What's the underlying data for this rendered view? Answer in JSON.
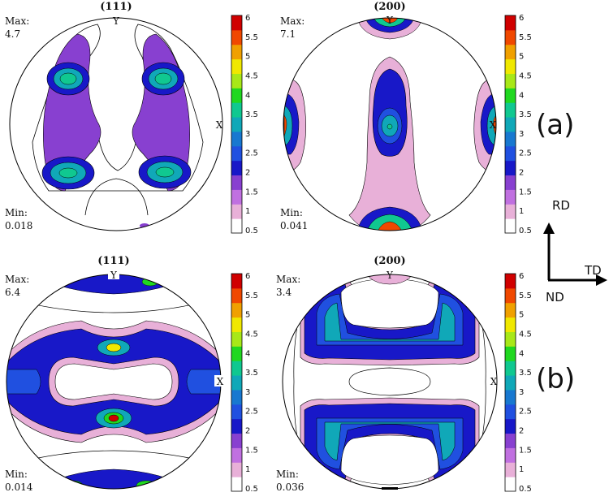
{
  "plots": [
    {
      "title": "(111)",
      "max_label": "Max:",
      "max_value": "4.7",
      "min_label": "Min:",
      "min_value": "0.018",
      "y_label": "Y",
      "x_label": "X"
    },
    {
      "title": "(200)",
      "max_label": "Max:",
      "max_value": "7.1",
      "min_label": "Min:",
      "min_value": "0.041",
      "y_label": "Y",
      "x_label": "X"
    },
    {
      "title": "(111)",
      "max_label": "Max:",
      "max_value": "6.4",
      "min_label": "Min:",
      "min_value": "0.014",
      "y_label": "Y",
      "x_label": "X"
    },
    {
      "title": "(200)",
      "max_label": "Max:",
      "max_value": "3.4",
      "min_label": "Min:",
      "min_value": "0.036",
      "y_label": "Y",
      "x_label": "X"
    }
  ],
  "colorbar": {
    "ticks": [
      "6",
      "5.5",
      "5",
      "4.5",
      "4",
      "3.5",
      "3",
      "2.5",
      "2",
      "1.5",
      "1",
      "0.5"
    ],
    "colors": [
      "#ffffff",
      "#e8b0d8",
      "#c070e0",
      "#8840d0",
      "#1818c8",
      "#2050e0",
      "#1878d0",
      "#10a8b8",
      "#10c890",
      "#20d820",
      "#a8e818",
      "#f0e800",
      "#f0a000",
      "#f04800",
      "#d00000"
    ]
  },
  "row_labels": {
    "a": "(a)",
    "b": "(b)"
  },
  "axes": {
    "rd": "RD",
    "td": "TD",
    "nd": "ND"
  }
}
